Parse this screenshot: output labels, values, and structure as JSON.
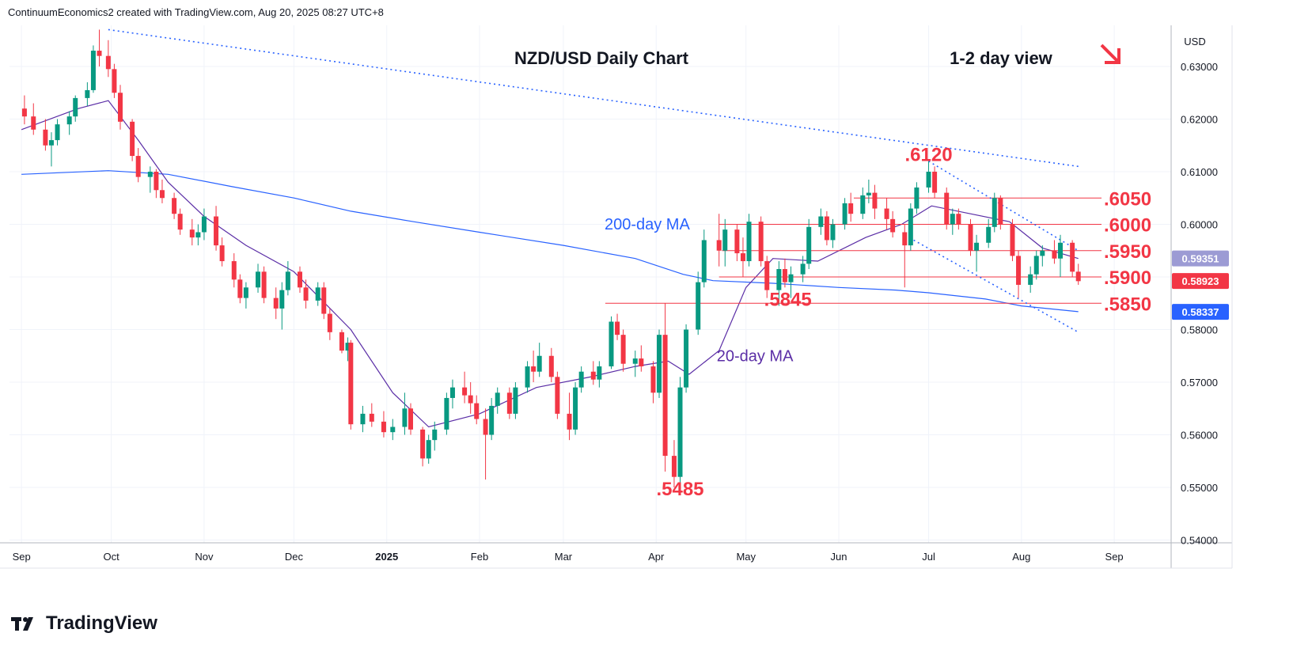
{
  "header": {
    "attribution": "ContinuumEconomics2 created with TradingView.com, Aug 20, 2025 08:27 UTC+8"
  },
  "footer": {
    "brand": "TradingView"
  },
  "chart_data": {
    "type": "candlestick",
    "title": "NZD/USD Daily Chart",
    "view_label": "1-2 day view",
    "currency": "USD",
    "y_range": [
      0.54,
      0.637
    ],
    "y_ticks": [
      "0.63000",
      "0.62000",
      "0.61000",
      "0.60000",
      "0.59000",
      "0.58000",
      "0.57000",
      "0.56000",
      "0.55000",
      "0.54000"
    ],
    "x_labels": [
      {
        "label": "Sep",
        "date": "2024-09-01"
      },
      {
        "label": "Oct",
        "date": "2024-10-01"
      },
      {
        "label": "Nov",
        "date": "2024-11-01"
      },
      {
        "label": "Dec",
        "date": "2024-12-01"
      },
      {
        "label": "2025",
        "date": "2025-01-01",
        "bold": true
      },
      {
        "label": "Feb",
        "date": "2025-02-01"
      },
      {
        "label": "Mar",
        "date": "2025-03-01"
      },
      {
        "label": "Apr",
        "date": "2025-04-01"
      },
      {
        "label": "May",
        "date": "2025-05-01"
      },
      {
        "label": "Jun",
        "date": "2025-06-01"
      },
      {
        "label": "Jul",
        "date": "2025-07-01"
      },
      {
        "label": "Aug",
        "date": "2025-08-01"
      },
      {
        "label": "Sep",
        "date": "2025-09-01"
      }
    ],
    "price_badges": [
      {
        "value": "0.59351",
        "price": 0.59351,
        "color": "#9c9bd4"
      },
      {
        "value": "0.58923",
        "price": 0.58923,
        "color": "#f23645"
      },
      {
        "value": "0.58337",
        "price": 0.58337,
        "color": "#2962ff"
      }
    ],
    "horizontal_levels": [
      {
        "label": ".6050",
        "price": 0.605,
        "from": "2025-06-06"
      },
      {
        "label": ".6000",
        "price": 0.6,
        "from": "2025-04-22"
      },
      {
        "label": ".5950",
        "price": 0.595,
        "from": "2025-04-23"
      },
      {
        "label": ".5900",
        "price": 0.59,
        "from": "2025-04-22"
      },
      {
        "label": ".5850",
        "price": 0.585,
        "from": "2025-03-15"
      }
    ],
    "annotations": [
      {
        "label": ".6120",
        "date": "2025-07-01",
        "price": 0.612
      },
      {
        "label": ".5845",
        "date": "2025-05-15",
        "price": 0.5845
      },
      {
        "label": ".5485",
        "date": "2025-04-09",
        "price": 0.5485
      },
      {
        "label": "200-day MA",
        "date": "2025-03-29",
        "price": 0.599,
        "color": "#2962ff"
      },
      {
        "label": "20-day MA",
        "date": "2025-05-04",
        "price": 0.574,
        "color": "#5b2ea6"
      }
    ],
    "trendlines": [
      {
        "name": "long-term-resistance",
        "points": [
          [
            "2024-09-30",
            0.637
          ],
          [
            "2025-08-20",
            0.611
          ]
        ]
      },
      {
        "name": "channel-upper",
        "points": [
          [
            "2025-07-01",
            0.612
          ],
          [
            "2025-08-20",
            0.595
          ]
        ]
      },
      {
        "name": "channel-lower",
        "points": [
          [
            "2025-06-26",
            0.597
          ],
          [
            "2025-08-20",
            0.5795
          ]
        ]
      }
    ],
    "ma200": [
      [
        "2024-09-01",
        0.6095
      ],
      [
        "2024-09-30",
        0.6102
      ],
      [
        "2024-10-20",
        0.6095
      ],
      [
        "2024-11-10",
        0.6072
      ],
      [
        "2024-12-01",
        0.605
      ],
      [
        "2024-12-20",
        0.6025
      ],
      [
        "2025-01-10",
        0.6005
      ],
      [
        "2025-02-01",
        0.5985
      ],
      [
        "2025-03-01",
        0.596
      ],
      [
        "2025-03-25",
        0.5935
      ],
      [
        "2025-04-10",
        0.5905
      ],
      [
        "2025-04-20",
        0.5893
      ],
      [
        "2025-05-10",
        0.5888
      ],
      [
        "2025-06-01",
        0.588
      ],
      [
        "2025-06-20",
        0.5875
      ],
      [
        "2025-07-01",
        0.587
      ],
      [
        "2025-07-20",
        0.5858
      ],
      [
        "2025-08-01",
        0.5845
      ],
      [
        "2025-08-20",
        0.5834
      ]
    ],
    "ma20": [
      [
        "2024-09-01",
        0.618
      ],
      [
        "2024-09-20",
        0.622
      ],
      [
        "2024-09-30",
        0.6235
      ],
      [
        "2024-10-10",
        0.616
      ],
      [
        "2024-10-20",
        0.608
      ],
      [
        "2024-11-01",
        0.6015
      ],
      [
        "2024-11-15",
        0.596
      ],
      [
        "2024-12-01",
        0.591
      ],
      [
        "2024-12-20",
        0.58
      ],
      [
        "2025-01-03",
        0.568
      ],
      [
        "2025-01-15",
        0.5615
      ],
      [
        "2025-02-01",
        0.564
      ],
      [
        "2025-02-20",
        0.569
      ],
      [
        "2025-03-10",
        0.571
      ],
      [
        "2025-03-25",
        0.573
      ],
      [
        "2025-04-05",
        0.574
      ],
      [
        "2025-04-12",
        0.5715
      ],
      [
        "2025-04-22",
        0.576
      ],
      [
        "2025-05-01",
        0.588
      ],
      [
        "2025-05-10",
        0.5935
      ],
      [
        "2025-05-25",
        0.593
      ],
      [
        "2025-06-10",
        0.5975
      ],
      [
        "2025-06-22",
        0.6
      ],
      [
        "2025-07-02",
        0.6035
      ],
      [
        "2025-07-15",
        0.602
      ],
      [
        "2025-07-28",
        0.6005
      ],
      [
        "2025-08-08",
        0.5955
      ],
      [
        "2025-08-20",
        0.5935
      ]
    ],
    "candles": [
      [
        "2024-09-02",
        0.622,
        0.6245,
        0.619,
        0.6205
      ],
      [
        "2024-09-05",
        0.6205,
        0.623,
        0.617,
        0.618
      ],
      [
        "2024-09-09",
        0.618,
        0.62,
        0.614,
        0.615
      ],
      [
        "2024-09-11",
        0.615,
        0.6175,
        0.611,
        0.616
      ],
      [
        "2024-09-13",
        0.616,
        0.62,
        0.615,
        0.619
      ],
      [
        "2024-09-17",
        0.619,
        0.6215,
        0.617,
        0.6205
      ],
      [
        "2024-09-19",
        0.6205,
        0.6245,
        0.6195,
        0.624
      ],
      [
        "2024-09-23",
        0.624,
        0.627,
        0.6225,
        0.6255
      ],
      [
        "2024-09-25",
        0.6255,
        0.634,
        0.625,
        0.633
      ],
      [
        "2024-09-27",
        0.633,
        0.637,
        0.63,
        0.632
      ],
      [
        "2024-09-30",
        0.632,
        0.635,
        0.628,
        0.6295
      ],
      [
        "2024-10-02",
        0.6295,
        0.6305,
        0.624,
        0.625
      ],
      [
        "2024-10-04",
        0.625,
        0.6265,
        0.618,
        0.6195
      ],
      [
        "2024-10-08",
        0.6195,
        0.62,
        0.612,
        0.613
      ],
      [
        "2024-10-10",
        0.613,
        0.6145,
        0.608,
        0.609
      ],
      [
        "2024-10-14",
        0.609,
        0.611,
        0.606,
        0.61
      ],
      [
        "2024-10-16",
        0.61,
        0.6105,
        0.605,
        0.6065
      ],
      [
        "2024-10-18",
        0.6065,
        0.6085,
        0.604,
        0.605
      ],
      [
        "2024-10-22",
        0.605,
        0.606,
        0.601,
        0.602
      ],
      [
        "2024-10-24",
        0.602,
        0.603,
        0.598,
        0.599
      ],
      [
        "2024-10-28",
        0.599,
        0.601,
        0.596,
        0.5975
      ],
      [
        "2024-10-30",
        0.5975,
        0.6,
        0.596,
        0.5985
      ],
      [
        "2024-11-01",
        0.5985,
        0.603,
        0.597,
        0.6015
      ],
      [
        "2024-11-05",
        0.6015,
        0.6035,
        0.595,
        0.596
      ],
      [
        "2024-11-07",
        0.596,
        0.5975,
        0.592,
        0.593
      ],
      [
        "2024-11-11",
        0.593,
        0.5945,
        0.588,
        0.5895
      ],
      [
        "2024-11-13",
        0.5895,
        0.5905,
        0.585,
        0.586
      ],
      [
        "2024-11-15",
        0.586,
        0.589,
        0.584,
        0.588
      ],
      [
        "2024-11-19",
        0.588,
        0.5925,
        0.587,
        0.591
      ],
      [
        "2024-11-21",
        0.591,
        0.592,
        0.585,
        0.586
      ],
      [
        "2024-11-25",
        0.586,
        0.588,
        0.582,
        0.584
      ],
      [
        "2024-11-27",
        0.584,
        0.589,
        0.58,
        0.5875
      ],
      [
        "2024-11-29",
        0.5875,
        0.593,
        0.5865,
        0.591
      ],
      [
        "2024-12-03",
        0.591,
        0.592,
        0.587,
        0.588
      ],
      [
        "2024-12-05",
        0.588,
        0.5895,
        0.584,
        0.5855
      ],
      [
        "2024-12-09",
        0.5855,
        0.589,
        0.5845,
        0.588
      ],
      [
        "2024-12-11",
        0.588,
        0.589,
        0.582,
        0.583
      ],
      [
        "2024-12-13",
        0.583,
        0.584,
        0.578,
        0.5795
      ],
      [
        "2024-12-17",
        0.5795,
        0.58,
        0.5755,
        0.576
      ],
      [
        "2024-12-19",
        0.576,
        0.5785,
        0.574,
        0.5775
      ],
      [
        "2024-12-20",
        0.5775,
        0.578,
        0.561,
        0.562
      ],
      [
        "2024-12-24",
        0.562,
        0.5655,
        0.5605,
        0.564
      ],
      [
        "2024-12-27",
        0.564,
        0.566,
        0.5615,
        0.5625
      ],
      [
        "2024-12-31",
        0.5625,
        0.5645,
        0.5595,
        0.5605
      ],
      [
        "2025-01-03",
        0.5605,
        0.563,
        0.559,
        0.5615
      ],
      [
        "2025-01-07",
        0.5615,
        0.568,
        0.56,
        0.565
      ],
      [
        "2025-01-09",
        0.565,
        0.566,
        0.56,
        0.561
      ],
      [
        "2025-01-13",
        0.561,
        0.5615,
        0.554,
        0.5555
      ],
      [
        "2025-01-15",
        0.5555,
        0.56,
        0.5545,
        0.559
      ],
      [
        "2025-01-17",
        0.559,
        0.5625,
        0.557,
        0.561
      ],
      [
        "2025-01-21",
        0.561,
        0.568,
        0.56,
        0.567
      ],
      [
        "2025-01-23",
        0.567,
        0.5705,
        0.565,
        0.569
      ],
      [
        "2025-01-27",
        0.569,
        0.572,
        0.566,
        0.5675
      ],
      [
        "2025-01-29",
        0.5675,
        0.57,
        0.564,
        0.566
      ],
      [
        "2025-01-31",
        0.566,
        0.5675,
        0.562,
        0.563
      ],
      [
        "2025-02-03",
        0.563,
        0.565,
        0.5515,
        0.56
      ],
      [
        "2025-02-05",
        0.56,
        0.567,
        0.559,
        0.5655
      ],
      [
        "2025-02-07",
        0.5655,
        0.569,
        0.564,
        0.568
      ],
      [
        "2025-02-11",
        0.568,
        0.569,
        0.563,
        0.564
      ],
      [
        "2025-02-13",
        0.564,
        0.57,
        0.563,
        0.569
      ],
      [
        "2025-02-17",
        0.569,
        0.574,
        0.568,
        0.573
      ],
      [
        "2025-02-19",
        0.573,
        0.576,
        0.57,
        0.572
      ],
      [
        "2025-02-21",
        0.572,
        0.5775,
        0.571,
        0.575
      ],
      [
        "2025-02-25",
        0.575,
        0.5765,
        0.57,
        0.571
      ],
      [
        "2025-02-27",
        0.571,
        0.572,
        0.563,
        0.564
      ],
      [
        "2025-03-03",
        0.564,
        0.568,
        0.559,
        0.561
      ],
      [
        "2025-03-05",
        0.561,
        0.57,
        0.56,
        0.569
      ],
      [
        "2025-03-07",
        0.569,
        0.573,
        0.568,
        0.572
      ],
      [
        "2025-03-11",
        0.572,
        0.574,
        0.5695,
        0.5705
      ],
      [
        "2025-03-13",
        0.5705,
        0.574,
        0.569,
        0.573
      ],
      [
        "2025-03-17",
        0.573,
        0.5825,
        0.5725,
        0.5815
      ],
      [
        "2025-03-19",
        0.5815,
        0.583,
        0.578,
        0.579
      ],
      [
        "2025-03-21",
        0.579,
        0.58,
        0.572,
        0.5735
      ],
      [
        "2025-03-25",
        0.5735,
        0.576,
        0.571,
        0.5745
      ],
      [
        "2025-03-27",
        0.5745,
        0.577,
        0.572,
        0.573
      ],
      [
        "2025-03-31",
        0.573,
        0.574,
        0.566,
        0.568
      ],
      [
        "2025-04-02",
        0.568,
        0.58,
        0.567,
        0.579
      ],
      [
        "2025-04-04",
        0.579,
        0.585,
        0.553,
        0.556
      ],
      [
        "2025-04-07",
        0.556,
        0.559,
        0.55,
        0.552
      ],
      [
        "2025-04-09",
        0.552,
        0.571,
        0.5485,
        0.569
      ],
      [
        "2025-04-11",
        0.569,
        0.581,
        0.568,
        0.58
      ],
      [
        "2025-04-15",
        0.58,
        0.591,
        0.579,
        0.589
      ],
      [
        "2025-04-17",
        0.589,
        0.599,
        0.588,
        0.597
      ],
      [
        "2025-04-22",
        0.597,
        0.602,
        0.592,
        0.595
      ],
      [
        "2025-04-24",
        0.595,
        0.601,
        0.592,
        0.599
      ],
      [
        "2025-04-28",
        0.599,
        0.6,
        0.593,
        0.5945
      ],
      [
        "2025-04-30",
        0.5945,
        0.5975,
        0.59,
        0.593
      ],
      [
        "2025-05-02",
        0.593,
        0.602,
        0.592,
        0.6005
      ],
      [
        "2025-05-06",
        0.6005,
        0.6015,
        0.592,
        0.593
      ],
      [
        "2025-05-08",
        0.593,
        0.594,
        0.586,
        0.5875
      ],
      [
        "2025-05-12",
        0.5875,
        0.593,
        0.5845,
        0.5915
      ],
      [
        "2025-05-14",
        0.5915,
        0.5935,
        0.588,
        0.589
      ],
      [
        "2025-05-16",
        0.589,
        0.592,
        0.586,
        0.5905
      ],
      [
        "2025-05-20",
        0.5905,
        0.594,
        0.589,
        0.5925
      ],
      [
        "2025-05-22",
        0.5925,
        0.601,
        0.5915,
        0.5995
      ],
      [
        "2025-05-26",
        0.5995,
        0.603,
        0.598,
        0.6015
      ],
      [
        "2025-05-28",
        0.6015,
        0.6025,
        0.596,
        0.597
      ],
      [
        "2025-05-30",
        0.597,
        0.601,
        0.5955,
        0.6
      ],
      [
        "2025-06-03",
        0.6,
        0.605,
        0.599,
        0.604
      ],
      [
        "2025-06-05",
        0.604,
        0.606,
        0.6005,
        0.602
      ],
      [
        "2025-06-09",
        0.602,
        0.607,
        0.601,
        0.6055
      ],
      [
        "2025-06-11",
        0.6055,
        0.6085,
        0.604,
        0.606
      ],
      [
        "2025-06-13",
        0.606,
        0.6075,
        0.601,
        0.603
      ],
      [
        "2025-06-17",
        0.603,
        0.605,
        0.599,
        0.601
      ],
      [
        "2025-06-19",
        0.601,
        0.6025,
        0.5975,
        0.5985
      ],
      [
        "2025-06-23",
        0.5985,
        0.6,
        0.588,
        0.596
      ],
      [
        "2025-06-25",
        0.596,
        0.604,
        0.595,
        0.603
      ],
      [
        "2025-06-27",
        0.603,
        0.608,
        0.602,
        0.607
      ],
      [
        "2025-07-01",
        0.607,
        0.612,
        0.606,
        0.61
      ],
      [
        "2025-07-03",
        0.61,
        0.611,
        0.605,
        0.606
      ],
      [
        "2025-07-07",
        0.606,
        0.607,
        0.599,
        0.6
      ],
      [
        "2025-07-09",
        0.6,
        0.603,
        0.598,
        0.602
      ],
      [
        "2025-07-11",
        0.602,
        0.603,
        0.599,
        0.6
      ],
      [
        "2025-07-15",
        0.6,
        0.601,
        0.594,
        0.595
      ],
      [
        "2025-07-17",
        0.595,
        0.598,
        0.591,
        0.5965
      ],
      [
        "2025-07-21",
        0.5965,
        0.601,
        0.5955,
        0.5995
      ],
      [
        "2025-07-23",
        0.5995,
        0.606,
        0.5985,
        0.605
      ],
      [
        "2025-07-25",
        0.605,
        0.6055,
        0.599,
        0.6
      ],
      [
        "2025-07-29",
        0.6,
        0.601,
        0.593,
        0.594
      ],
      [
        "2025-07-31",
        0.594,
        0.595,
        0.586,
        0.5885
      ],
      [
        "2025-08-04",
        0.5885,
        0.592,
        0.587,
        0.5905
      ],
      [
        "2025-08-06",
        0.5905,
        0.595,
        0.5895,
        0.594
      ],
      [
        "2025-08-08",
        0.594,
        0.596,
        0.592,
        0.595
      ],
      [
        "2025-08-12",
        0.595,
        0.597,
        0.5925,
        0.5935
      ],
      [
        "2025-08-14",
        0.5935,
        0.598,
        0.59,
        0.5965
      ],
      [
        "2025-08-18",
        0.5965,
        0.597,
        0.59,
        0.591
      ],
      [
        "2025-08-20",
        0.591,
        0.5925,
        0.5885,
        0.5892
      ]
    ]
  }
}
